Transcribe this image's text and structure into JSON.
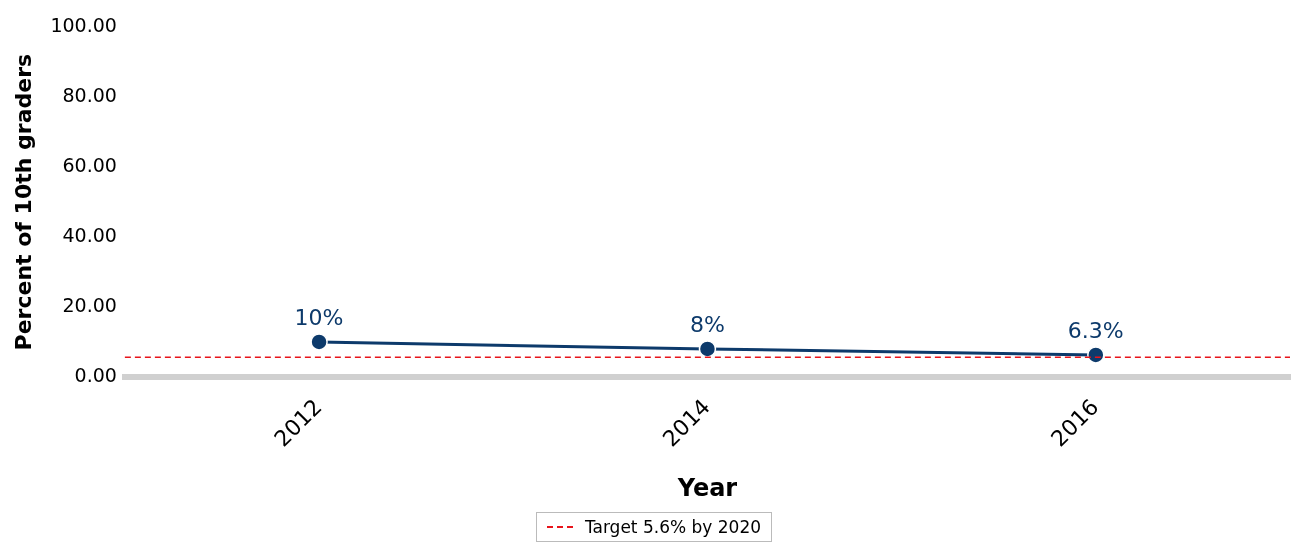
{
  "chart_data": {
    "type": "line",
    "xlabel": "Year",
    "ylabel": "Percent of 10th graders",
    "categories": [
      "2012",
      "2014",
      "2016"
    ],
    "series": [
      {
        "color": "#0d3a6b",
        "values": [
          10,
          8,
          6.3
        ],
        "value_labels": [
          "10%",
          "8%",
          "6.3%"
        ]
      }
    ],
    "ylim": [
      0,
      100
    ],
    "yticks": [
      {
        "value": 0,
        "label": "0.00"
      },
      {
        "value": 20,
        "label": "20.00"
      },
      {
        "value": 40,
        "label": "40.00"
      },
      {
        "value": 60,
        "label": "60.00"
      },
      {
        "value": 80,
        "label": "80.00"
      },
      {
        "value": 100,
        "label": "100.00"
      }
    ],
    "ref_lines": [
      {
        "axis": "y",
        "value": 5.6,
        "label": "Target 5.6% by 2020",
        "color": "#e8141b",
        "line_style": "dashed"
      }
    ],
    "grid": false,
    "legend": "bottom",
    "marker": "circle",
    "line_style": "solid"
  }
}
